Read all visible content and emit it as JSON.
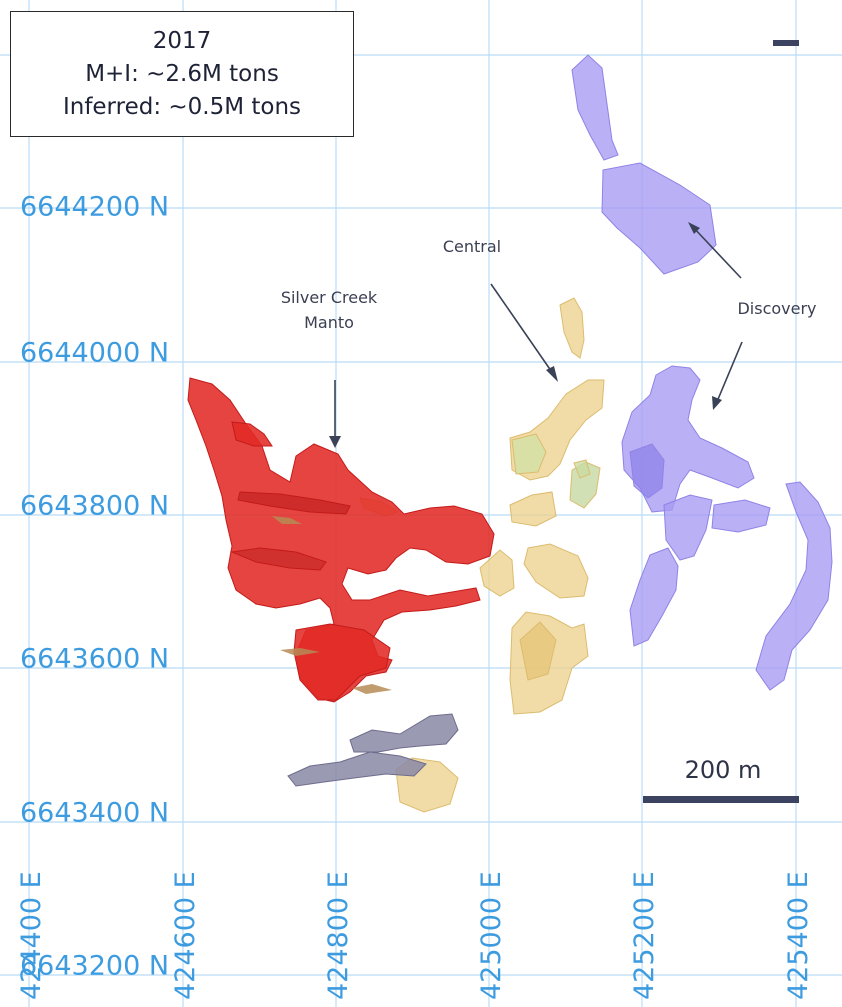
{
  "title_box": {
    "year": "2017",
    "measured_indicated": "M+I: ~2.6M tons",
    "inferred": "Inferred: ~0.5M tons"
  },
  "grid": {
    "northings": [
      {
        "value": 6644200,
        "label": "6644200 N"
      },
      {
        "value": 6644000,
        "label": "6644000 N"
      },
      {
        "value": 6643800,
        "label": "6643800 N"
      },
      {
        "value": 6643600,
        "label": "6643600 N"
      },
      {
        "value": 6643400,
        "label": "6643400 N"
      },
      {
        "value": 6643200,
        "label": "6643200 N"
      }
    ],
    "eastings": [
      {
        "value": 424400,
        "label": "424400 E"
      },
      {
        "value": 424600,
        "label": "424600 E"
      },
      {
        "value": 424800,
        "label": "424800 E"
      },
      {
        "value": 425000,
        "label": "425000 E"
      },
      {
        "value": 425200,
        "label": "425200 E"
      },
      {
        "value": 425400,
        "label": "425400 E"
      }
    ],
    "line_color": "#b9dcf7",
    "label_color": "#3d9be0"
  },
  "zones": {
    "silver_creek_manto": {
      "label_line1": "Silver Creek",
      "label_line2": "Manto",
      "color": "#e12a26"
    },
    "central": {
      "label": "Central",
      "color": "#edd28e"
    },
    "discovery": {
      "label": "Discovery",
      "color": "#a69af2"
    },
    "southern_bodies": {
      "color": "#8a88a6"
    }
  },
  "scale_bar": {
    "label": "200 m",
    "length_m": 200
  },
  "icons": {
    "zoom_out": "minus-icon"
  }
}
